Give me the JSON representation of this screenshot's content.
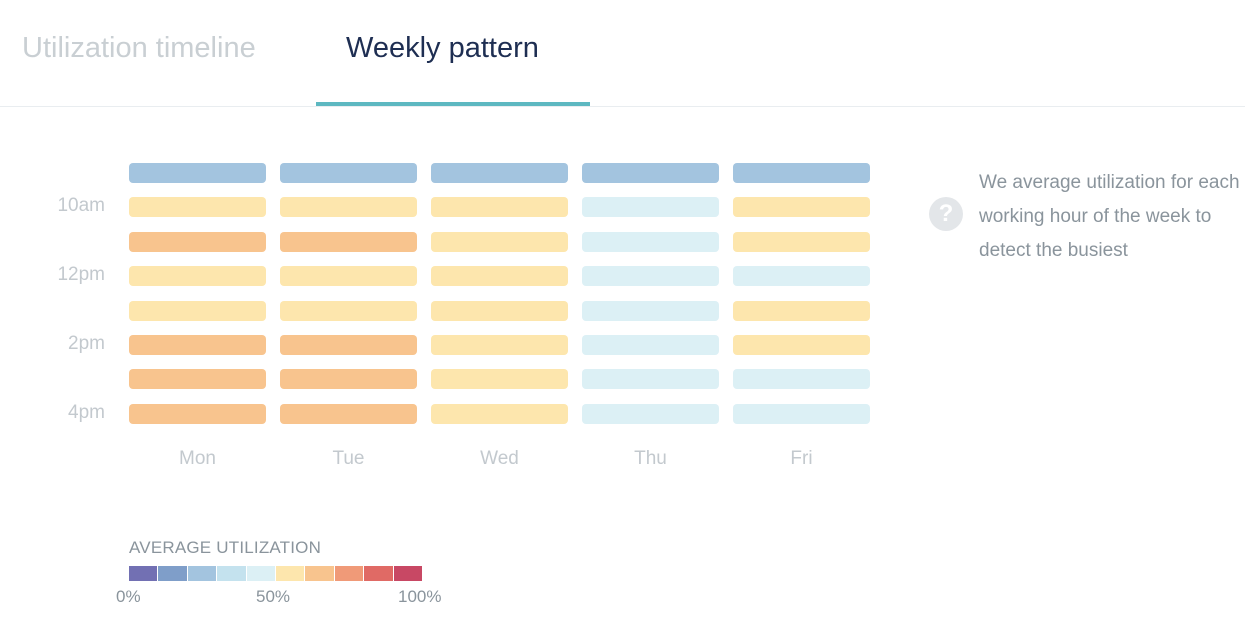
{
  "tabs": {
    "timeline_label": "Utilization timeline",
    "weekly_label": "Weekly pattern",
    "accent_color": "#5db8c1"
  },
  "chart_data": {
    "type": "heatmap",
    "days": [
      "Mon",
      "Tue",
      "Wed",
      "Thu",
      "Fri"
    ],
    "y_tick_labels": [
      "10am",
      "12pm",
      "2pm",
      "4pm"
    ],
    "rows": 8,
    "palette": [
      "#7270b3",
      "#7f9ec9",
      "#a3c4df",
      "#c4e2ee",
      "#dcf0f5",
      "#fde6ad",
      "#f8c48e",
      "#f09a78",
      "#e06a65",
      "#c84864"
    ],
    "levels": [
      [
        2,
        2,
        2,
        2,
        2
      ],
      [
        5,
        5,
        5,
        4,
        5
      ],
      [
        6,
        6,
        5,
        4,
        5
      ],
      [
        5,
        5,
        5,
        4,
        4
      ],
      [
        5,
        5,
        5,
        4,
        5
      ],
      [
        6,
        6,
        5,
        4,
        5
      ],
      [
        6,
        6,
        5,
        4,
        4
      ],
      [
        6,
        6,
        5,
        4,
        4
      ]
    ]
  },
  "info": {
    "icon": "question-icon",
    "text": "We average utilization for each working hour of the week to detect the busiest"
  },
  "legend": {
    "title": "AVERAGE UTILIZATION",
    "min_label": "0%",
    "mid_label": "50%",
    "max_label": "100%"
  }
}
